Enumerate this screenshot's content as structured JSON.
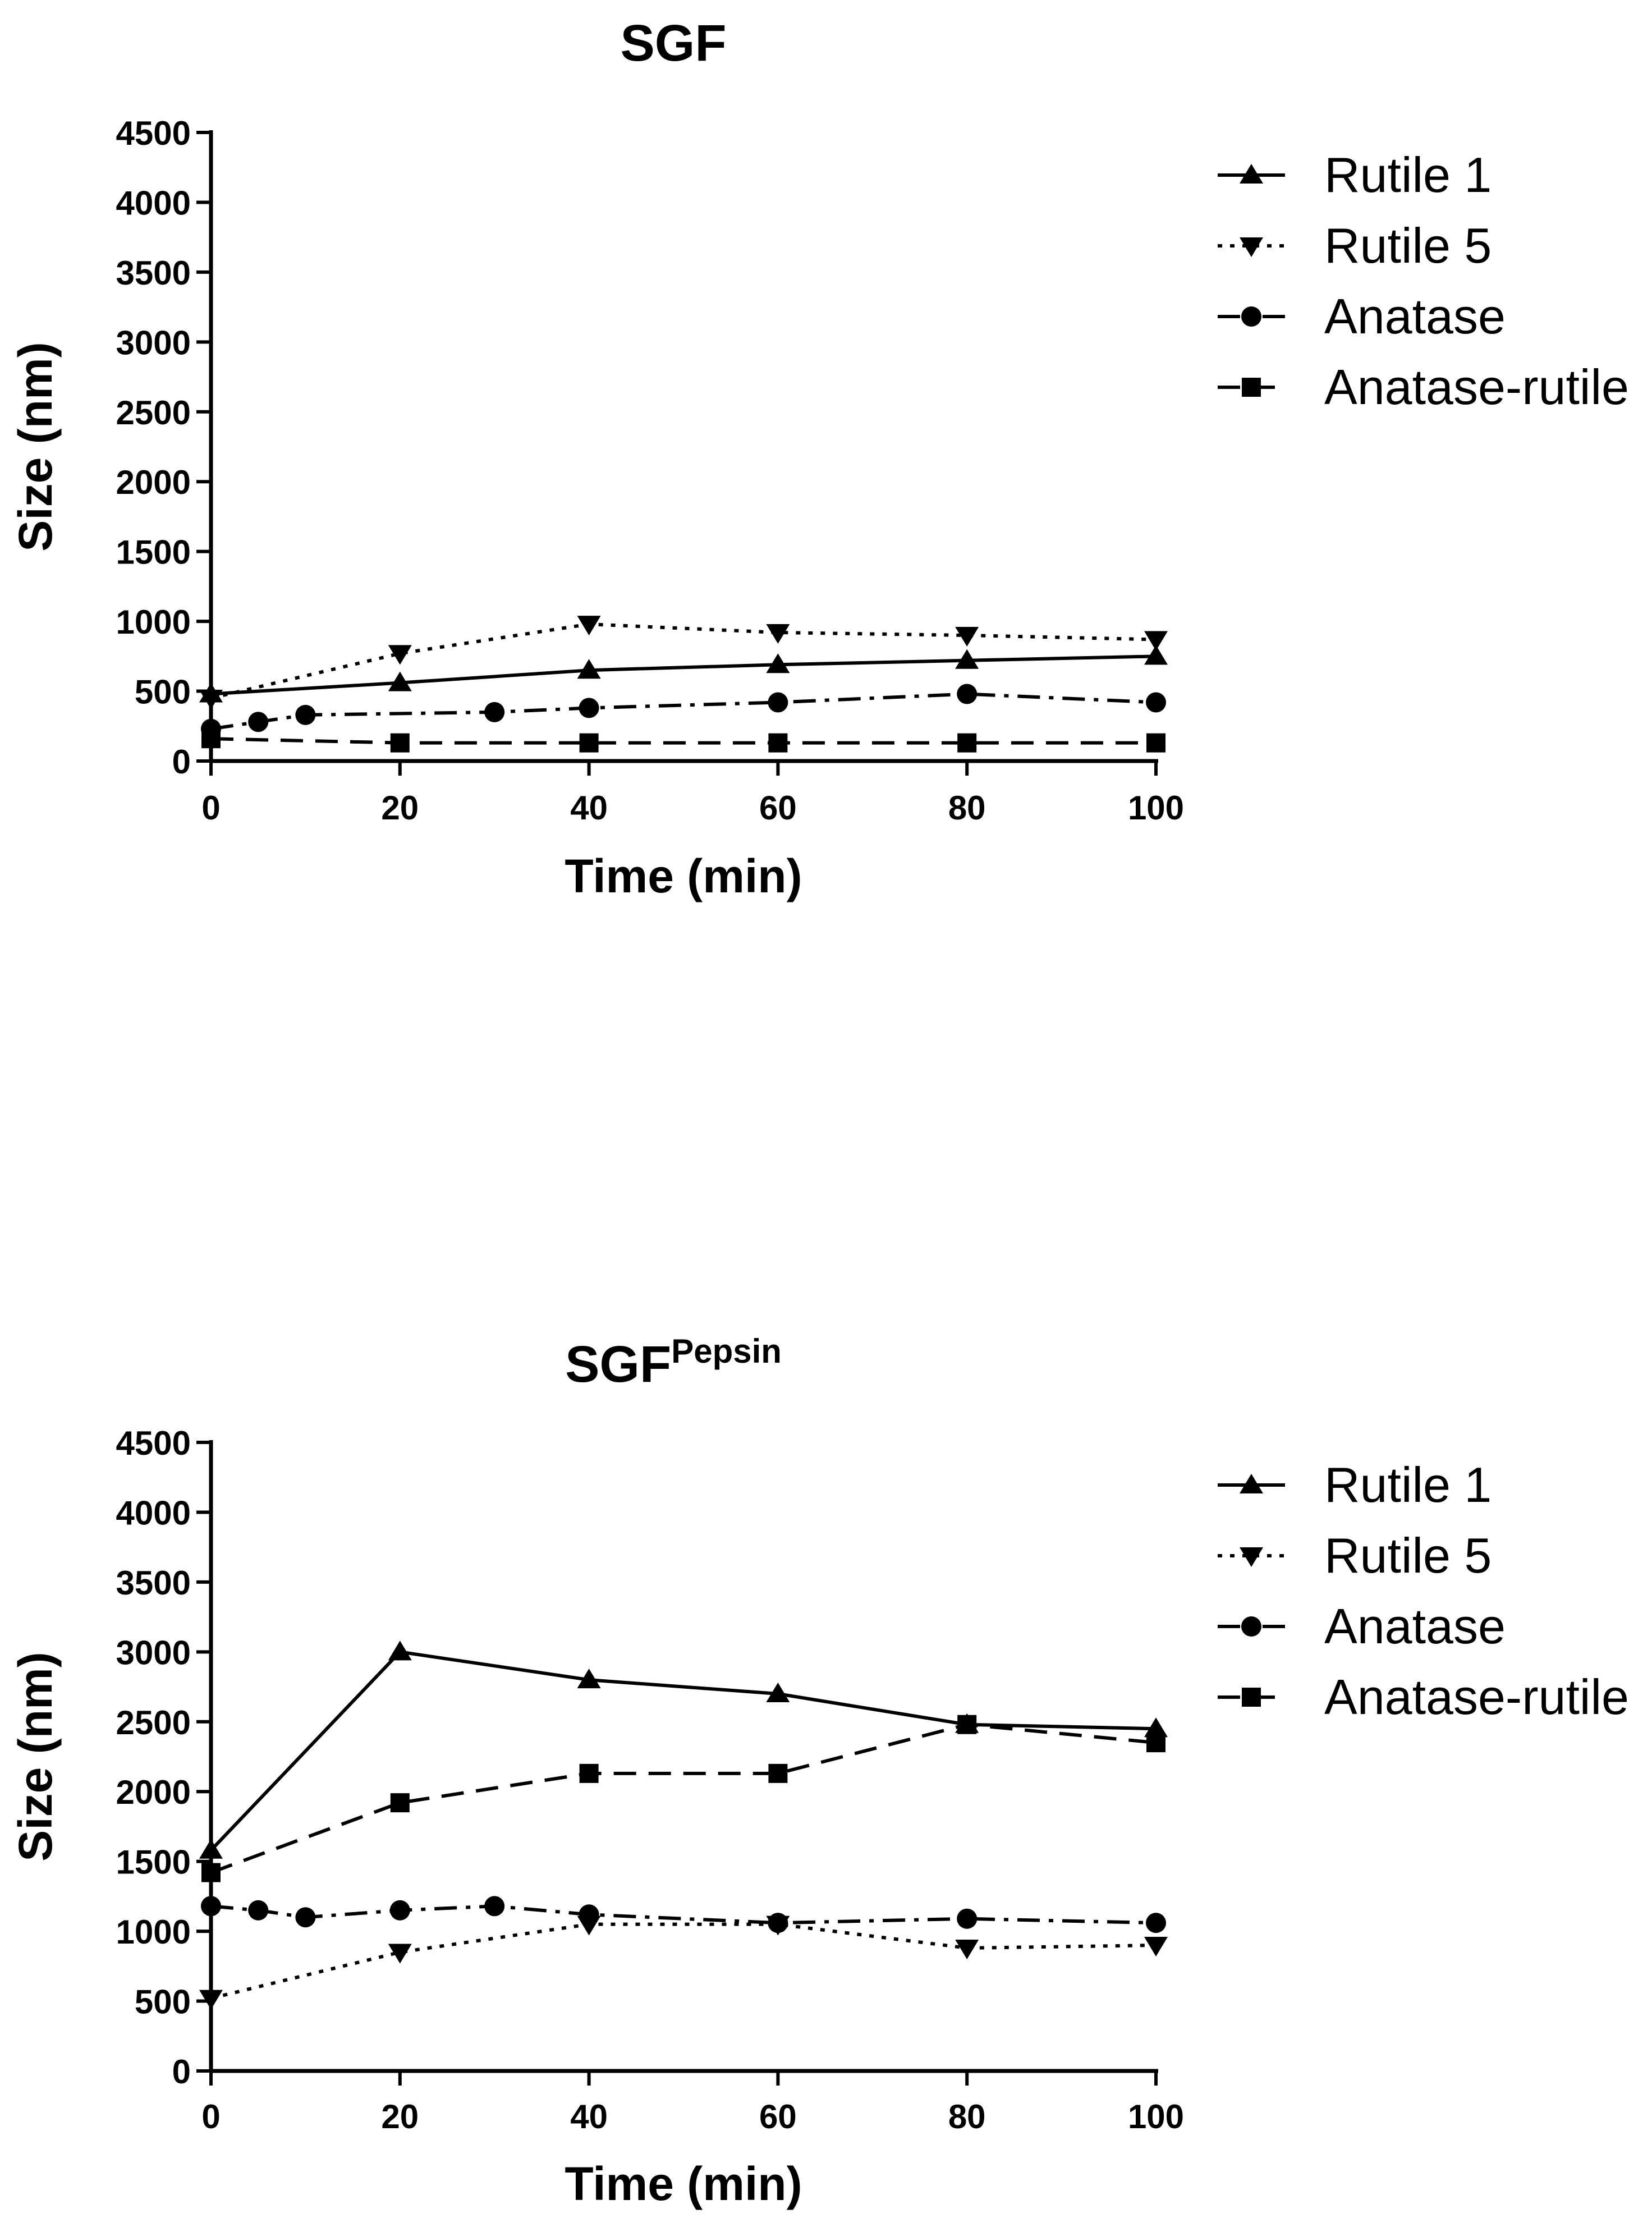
{
  "chart_data": [
    {
      "type": "line",
      "title": "SGF",
      "title_superscript": "",
      "xlabel": "Time (min)",
      "ylabel": "Size (nm)",
      "xlim": [
        0,
        100
      ],
      "ylim": [
        0,
        4500
      ],
      "xticks": [
        "0",
        "20",
        "40",
        "60",
        "80",
        "100"
      ],
      "yticks": [
        "0",
        "500",
        "1000",
        "1500",
        "2000",
        "2500",
        "3000",
        "3500",
        "4000",
        "4500"
      ],
      "legend_position": "top-right",
      "series": [
        {
          "name": "Rutile 1",
          "marker": "triangle-up",
          "dash": "solid",
          "x": [
            0,
            20,
            40,
            60,
            80,
            100
          ],
          "y": [
            480,
            560,
            650,
            690,
            720,
            750
          ]
        },
        {
          "name": "Rutile 5",
          "marker": "triangle-down",
          "dash": "dotted",
          "x": [
            0,
            20,
            40,
            60,
            80,
            100
          ],
          "y": [
            450,
            770,
            980,
            920,
            900,
            870
          ]
        },
        {
          "name": "Anatase",
          "marker": "circle",
          "dash": "dashdot",
          "x": [
            0,
            5,
            10,
            30,
            40,
            60,
            80,
            100
          ],
          "y": [
            230,
            280,
            330,
            350,
            380,
            420,
            480,
            420
          ]
        },
        {
          "name": "Anatase-rutile",
          "marker": "square",
          "dash": "dashed",
          "x": [
            0,
            20,
            40,
            60,
            80,
            100
          ],
          "y": [
            160,
            130,
            130,
            130,
            130,
            130
          ]
        }
      ]
    },
    {
      "type": "line",
      "title": "SGF",
      "title_superscript": "Pepsin",
      "xlabel": "Time (min)",
      "ylabel": "Size (nm)",
      "xlim": [
        0,
        100
      ],
      "ylim": [
        0,
        4500
      ],
      "xticks": [
        "0",
        "20",
        "40",
        "60",
        "80",
        "100"
      ],
      "yticks": [
        "0",
        "500",
        "1000",
        "1500",
        "2000",
        "2500",
        "3000",
        "3500",
        "4000",
        "4500"
      ],
      "legend_position": "top-right",
      "series": [
        {
          "name": "Rutile 1",
          "marker": "triangle-up",
          "dash": "solid",
          "x": [
            0,
            20,
            40,
            60,
            80,
            100
          ],
          "y": [
            1580,
            3000,
            2800,
            2700,
            2480,
            2450
          ]
        },
        {
          "name": "Rutile 5",
          "marker": "triangle-down",
          "dash": "dotted",
          "x": [
            0,
            20,
            40,
            60,
            80,
            100
          ],
          "y": [
            520,
            850,
            1050,
            1050,
            880,
            900
          ]
        },
        {
          "name": "Anatase",
          "marker": "circle",
          "dash": "dashdot",
          "x": [
            0,
            5,
            10,
            20,
            30,
            40,
            60,
            80,
            100
          ],
          "y": [
            1180,
            1150,
            1100,
            1150,
            1180,
            1120,
            1060,
            1090,
            1060
          ]
        },
        {
          "name": "Anatase-rutile",
          "marker": "square",
          "dash": "dashed",
          "x": [
            0,
            20,
            40,
            60,
            80,
            100
          ],
          "y": [
            1420,
            1920,
            2130,
            2130,
            2480,
            2350
          ]
        }
      ]
    }
  ]
}
